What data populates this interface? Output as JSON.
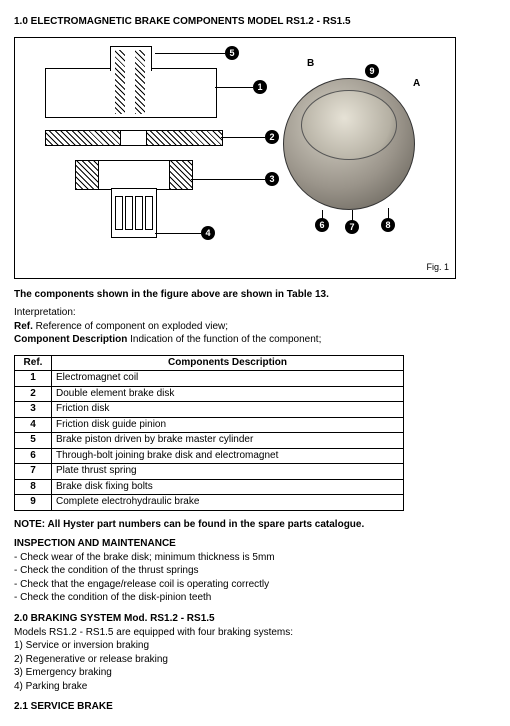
{
  "heading1": "1.0 ELECTROMAGNETIC BRAKE COMPONENTS MODEL RS1.2 - RS1.5",
  "figure": {
    "fig_label": "Fig. 1",
    "callouts": [
      "1",
      "2",
      "3",
      "4",
      "5",
      "6",
      "7",
      "8",
      "9"
    ],
    "letters": [
      "A",
      "B"
    ]
  },
  "caption": "The components shown in the figure above are shown in Table 13.",
  "interpretation": {
    "line1": "Interpretation:",
    "ref_label": "Ref.",
    "ref_text": " Reference of component on exploded view;",
    "desc_label": "Component Description",
    "desc_text": " Indication of the function of the component;"
  },
  "table": {
    "header_ref": "Ref.",
    "header_desc": "Components Description",
    "rows": [
      {
        "ref": "1",
        "desc": "Electromagnet coil"
      },
      {
        "ref": "2",
        "desc": "Double element brake disk"
      },
      {
        "ref": "3",
        "desc": "Friction disk"
      },
      {
        "ref": "4",
        "desc": "Friction disk guide pinion"
      },
      {
        "ref": "5",
        "desc": "Brake piston driven by brake master cylinder"
      },
      {
        "ref": "6",
        "desc": "Through-bolt joining brake disk and electromagnet"
      },
      {
        "ref": "7",
        "desc": "Plate thrust spring"
      },
      {
        "ref": "8",
        "desc": "Brake disk fixing bolts"
      },
      {
        "ref": "9",
        "desc": "Complete electrohydraulic brake"
      }
    ]
  },
  "note": "NOTE: All Hyster part numbers can be found in the spare parts catalogue.",
  "inspection": {
    "heading": "INSPECTION AND MAINTENANCE",
    "items": [
      "- Check wear of the brake disk; minimum thickness is 5mm",
      "- Check the condition of the thrust springs",
      "- Check that the engage/release coil is operating correctly",
      "- Check the condition of the disk-pinion teeth"
    ]
  },
  "heading2": "2.0 BRAKING SYSTEM Mod. RS1.2 - RS1.5",
  "braking": {
    "intro": "Models RS1.2 - RS1.5 are equipped with four braking systems:",
    "items": [
      "1) Service or inversion braking",
      "2) Regenerative or release braking",
      "3) Emergency braking",
      "4) Parking brake"
    ]
  },
  "heading21": "2.1 SERVICE BRAKE"
}
